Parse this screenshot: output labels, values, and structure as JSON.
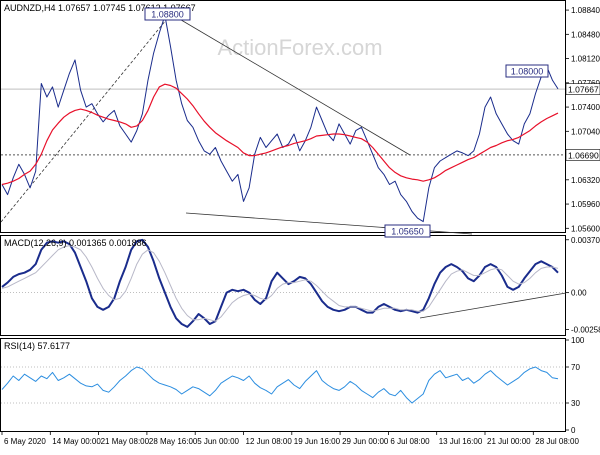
{
  "chart_data": {
    "type": "line",
    "symbol_line": "AUDNZD,H4  1.07657 1.07745 1.07612 1.07667",
    "watermark": "ActionForex.com",
    "x_labels": [
      "6 May 2020",
      "14 May 00:00",
      "21 May 08:00",
      "28 May 16:00",
      "5 Jun 00:00",
      "12 Jun 08:00",
      "19 Jun 16:00",
      "29 Jun 00:00",
      "6 Jul 08:00",
      "13 Jul 16:00",
      "21 Jul 00:00",
      "28 Jul 08:00"
    ],
    "price": {
      "ylim": [
        1.0556,
        1.0896
      ],
      "ticks": [
        "1.08840",
        "1.08480",
        "1.08120",
        "1.07760",
        "1.07400",
        "1.07040",
        "1.06680",
        "1.06320",
        "1.05960",
        "1.05600"
      ],
      "last_value": "1.07667",
      "level_line": "1.06690",
      "callouts": [
        "1.08800",
        "1.08000",
        "1.05650"
      ],
      "series": [
        {
          "name": "price",
          "color": "#1a2c8c",
          "values": [
            1.0625,
            1.061,
            1.0635,
            1.0655,
            1.064,
            1.062,
            1.0645,
            1.0775,
            1.0755,
            1.077,
            1.074,
            1.0765,
            1.079,
            1.081,
            1.0765,
            1.074,
            1.0745,
            1.073,
            1.0718,
            1.0728,
            1.0735,
            1.0712,
            1.07,
            1.0688,
            1.0705,
            1.073,
            1.078,
            1.082,
            1.085,
            1.0876,
            1.083,
            1.078,
            1.0745,
            1.072,
            1.071,
            1.069,
            1.0675,
            1.067,
            1.068,
            1.066,
            1.0645,
            1.063,
            1.064,
            1.06,
            1.062,
            1.067,
            1.0695,
            1.068,
            1.069,
            1.07,
            1.068,
            1.0685,
            1.07,
            1.0675,
            1.069,
            1.071,
            1.074,
            1.072,
            1.07,
            1.069,
            1.0715,
            1.07,
            1.0685,
            1.0705,
            1.071,
            1.069,
            1.067,
            1.065,
            1.064,
            1.0625,
            1.063,
            1.061,
            1.06,
            1.0585,
            1.0575,
            1.057,
            1.062,
            1.065,
            1.066,
            1.0665,
            1.067,
            1.0675,
            1.0672,
            1.0668,
            1.0675,
            1.07,
            1.074,
            1.0755,
            1.073,
            1.0715,
            1.07,
            1.069,
            1.0685,
            1.0715,
            1.073,
            1.076,
            1.0785,
            1.08,
            1.078,
            1.0767
          ]
        },
        {
          "name": "ma",
          "color": "#e8102a",
          "values": [
            1.0625,
            1.0627,
            1.063,
            1.0634,
            1.064,
            1.0645,
            1.0655,
            1.067,
            1.069,
            1.0706,
            1.0716,
            1.0725,
            1.0731,
            1.0735,
            1.0737,
            1.0735,
            1.0732,
            1.0728,
            1.0725,
            1.0722,
            1.072,
            1.0718,
            1.0715,
            1.071,
            1.0712,
            1.072,
            1.0735,
            1.0755,
            1.077,
            1.0774,
            1.0772,
            1.0768,
            1.076,
            1.0752,
            1.0742,
            1.073,
            1.0719,
            1.071,
            1.0702,
            1.0696,
            1.069,
            1.0685,
            1.068,
            1.0672,
            1.0668,
            1.0668,
            1.067,
            1.0672,
            1.0675,
            1.0678,
            1.0681,
            1.0683,
            1.0686,
            1.0688,
            1.069,
            1.0693,
            1.0697,
            1.0698,
            1.0699,
            1.07,
            1.07,
            1.0699,
            1.0697,
            1.0695,
            1.0693,
            1.0688,
            1.068,
            1.067,
            1.066,
            1.065,
            1.0643,
            1.0638,
            1.0635,
            1.0633,
            1.0632,
            1.063,
            1.0632,
            1.0635,
            1.064,
            1.0646,
            1.065,
            1.0654,
            1.0658,
            1.0662,
            1.0665,
            1.067,
            1.0675,
            1.068,
            1.0683,
            1.0687,
            1.069,
            1.0692,
            1.0695,
            1.07,
            1.0705,
            1.0712,
            1.0718,
            1.0723,
            1.0727,
            1.0731
          ]
        }
      ]
    },
    "macd": {
      "label": "MACD(12,26,9) 0.001365 0.001886",
      "ylim": [
        -0.0029,
        0.0039
      ],
      "ticks": [
        "0.003706",
        "0.00",
        "-0.002585"
      ],
      "series": [
        {
          "name": "macd",
          "color": "#1a2c8c",
          "values": [
            0.0004,
            0.0007,
            0.0011,
            0.0013,
            0.0014,
            0.0016,
            0.002,
            0.003,
            0.0035,
            0.0036,
            0.0035,
            0.0036,
            0.0034,
            0.0028,
            0.0018,
            0.0008,
            -0.0004,
            -0.001,
            -0.0012,
            -0.001,
            -0.0004,
            0.0008,
            0.0018,
            0.003,
            0.0036,
            0.0037,
            0.0032,
            0.0022,
            0.001,
            0.0,
            -0.001,
            -0.0018,
            -0.0022,
            -0.0024,
            -0.002,
            -0.0015,
            -0.0018,
            -0.0022,
            -0.002,
            -0.001,
            0.0,
            0.0002,
            0.0001,
            0.0002,
            0.0,
            -0.0005,
            -0.0008,
            -0.0004,
            0.0008,
            0.0014,
            0.001,
            0.0006,
            0.0008,
            0.0011,
            0.001,
            0.0006,
            0.0,
            -0.0006,
            -0.001,
            -0.0012,
            -0.0013,
            -0.0012,
            -0.001,
            -0.001,
            -0.0012,
            -0.0014,
            -0.0014,
            -0.001,
            -0.0008,
            -0.001,
            -0.0012,
            -0.0013,
            -0.0012,
            -0.0013,
            -0.0014,
            -0.0012,
            -0.0004,
            0.0006,
            0.0014,
            0.0018,
            0.002,
            0.0018,
            0.0015,
            0.001,
            0.0008,
            0.0012,
            0.0018,
            0.002,
            0.0018,
            0.0012,
            0.0004,
            0.0002,
            0.0004,
            0.001,
            0.0015,
            0.002,
            0.0022,
            0.002,
            0.0018,
            0.0014
          ]
        },
        {
          "name": "signal",
          "color": "#b8b8c8",
          "values": [
            0.0003,
            0.0004,
            0.0006,
            0.0008,
            0.001,
            0.0012,
            0.0014,
            0.0018,
            0.0022,
            0.0026,
            0.003,
            0.0032,
            0.0033,
            0.0032,
            0.003,
            0.0025,
            0.0018,
            0.001,
            0.0003,
            -0.0002,
            -0.0005,
            -0.0004,
            0.0001,
            0.001,
            0.002,
            0.0027,
            0.003,
            0.0028,
            0.0022,
            0.0014,
            0.0005,
            -0.0004,
            -0.0011,
            -0.0016,
            -0.0019,
            -0.0019,
            -0.0018,
            -0.0019,
            -0.002,
            -0.0017,
            -0.0012,
            -0.0007,
            -0.0004,
            -0.0002,
            -0.0001,
            -0.0002,
            -0.0004,
            -0.0005,
            -0.0002,
            0.0003,
            0.0006,
            0.0007,
            0.0007,
            0.0008,
            0.0009,
            0.0008,
            0.0005,
            0.0001,
            -0.0003,
            -0.0006,
            -0.0009,
            -0.001,
            -0.001,
            -0.001,
            -0.0011,
            -0.0012,
            -0.0013,
            -0.0012,
            -0.0011,
            -0.0011,
            -0.0011,
            -0.0012,
            -0.0012,
            -0.0012,
            -0.0013,
            -0.0013,
            -0.001,
            -0.0004,
            0.0002,
            0.0008,
            0.0013,
            0.0015,
            0.0016,
            0.0014,
            0.0012,
            0.0012,
            0.0014,
            0.0016,
            0.0017,
            0.0016,
            0.0012,
            0.0008,
            0.0006,
            0.0007,
            0.001,
            0.0014,
            0.0017,
            0.0018,
            0.0018,
            0.0017
          ]
        }
      ]
    },
    "rsi": {
      "label": "RSI(14) 57.6177",
      "ylim": [
        0,
        100
      ],
      "ticks": [
        "100",
        "70",
        "30",
        "0"
      ],
      "series": [
        {
          "name": "rsi",
          "color": "#2c8ee0",
          "values": [
            45,
            52,
            60,
            55,
            62,
            58,
            54,
            60,
            57,
            64,
            55,
            58,
            62,
            57,
            52,
            49,
            48,
            51,
            44,
            42,
            48,
            55,
            60,
            66,
            70,
            68,
            62,
            56,
            52,
            50,
            48,
            45,
            40,
            44,
            48,
            46,
            42,
            38,
            44,
            52,
            56,
            60,
            58,
            55,
            60,
            52,
            47,
            44,
            40,
            48,
            52,
            56,
            50,
            46,
            54,
            60,
            66,
            55,
            50,
            46,
            44,
            48,
            54,
            50,
            44,
            40,
            36,
            42,
            46,
            40,
            38,
            44,
            36,
            30,
            35,
            40,
            55,
            62,
            66,
            58,
            60,
            62,
            55,
            58,
            52,
            56,
            62,
            66,
            60,
            55,
            50,
            54,
            58,
            64,
            68,
            70,
            66,
            64,
            58,
            57
          ]
        }
      ]
    }
  }
}
